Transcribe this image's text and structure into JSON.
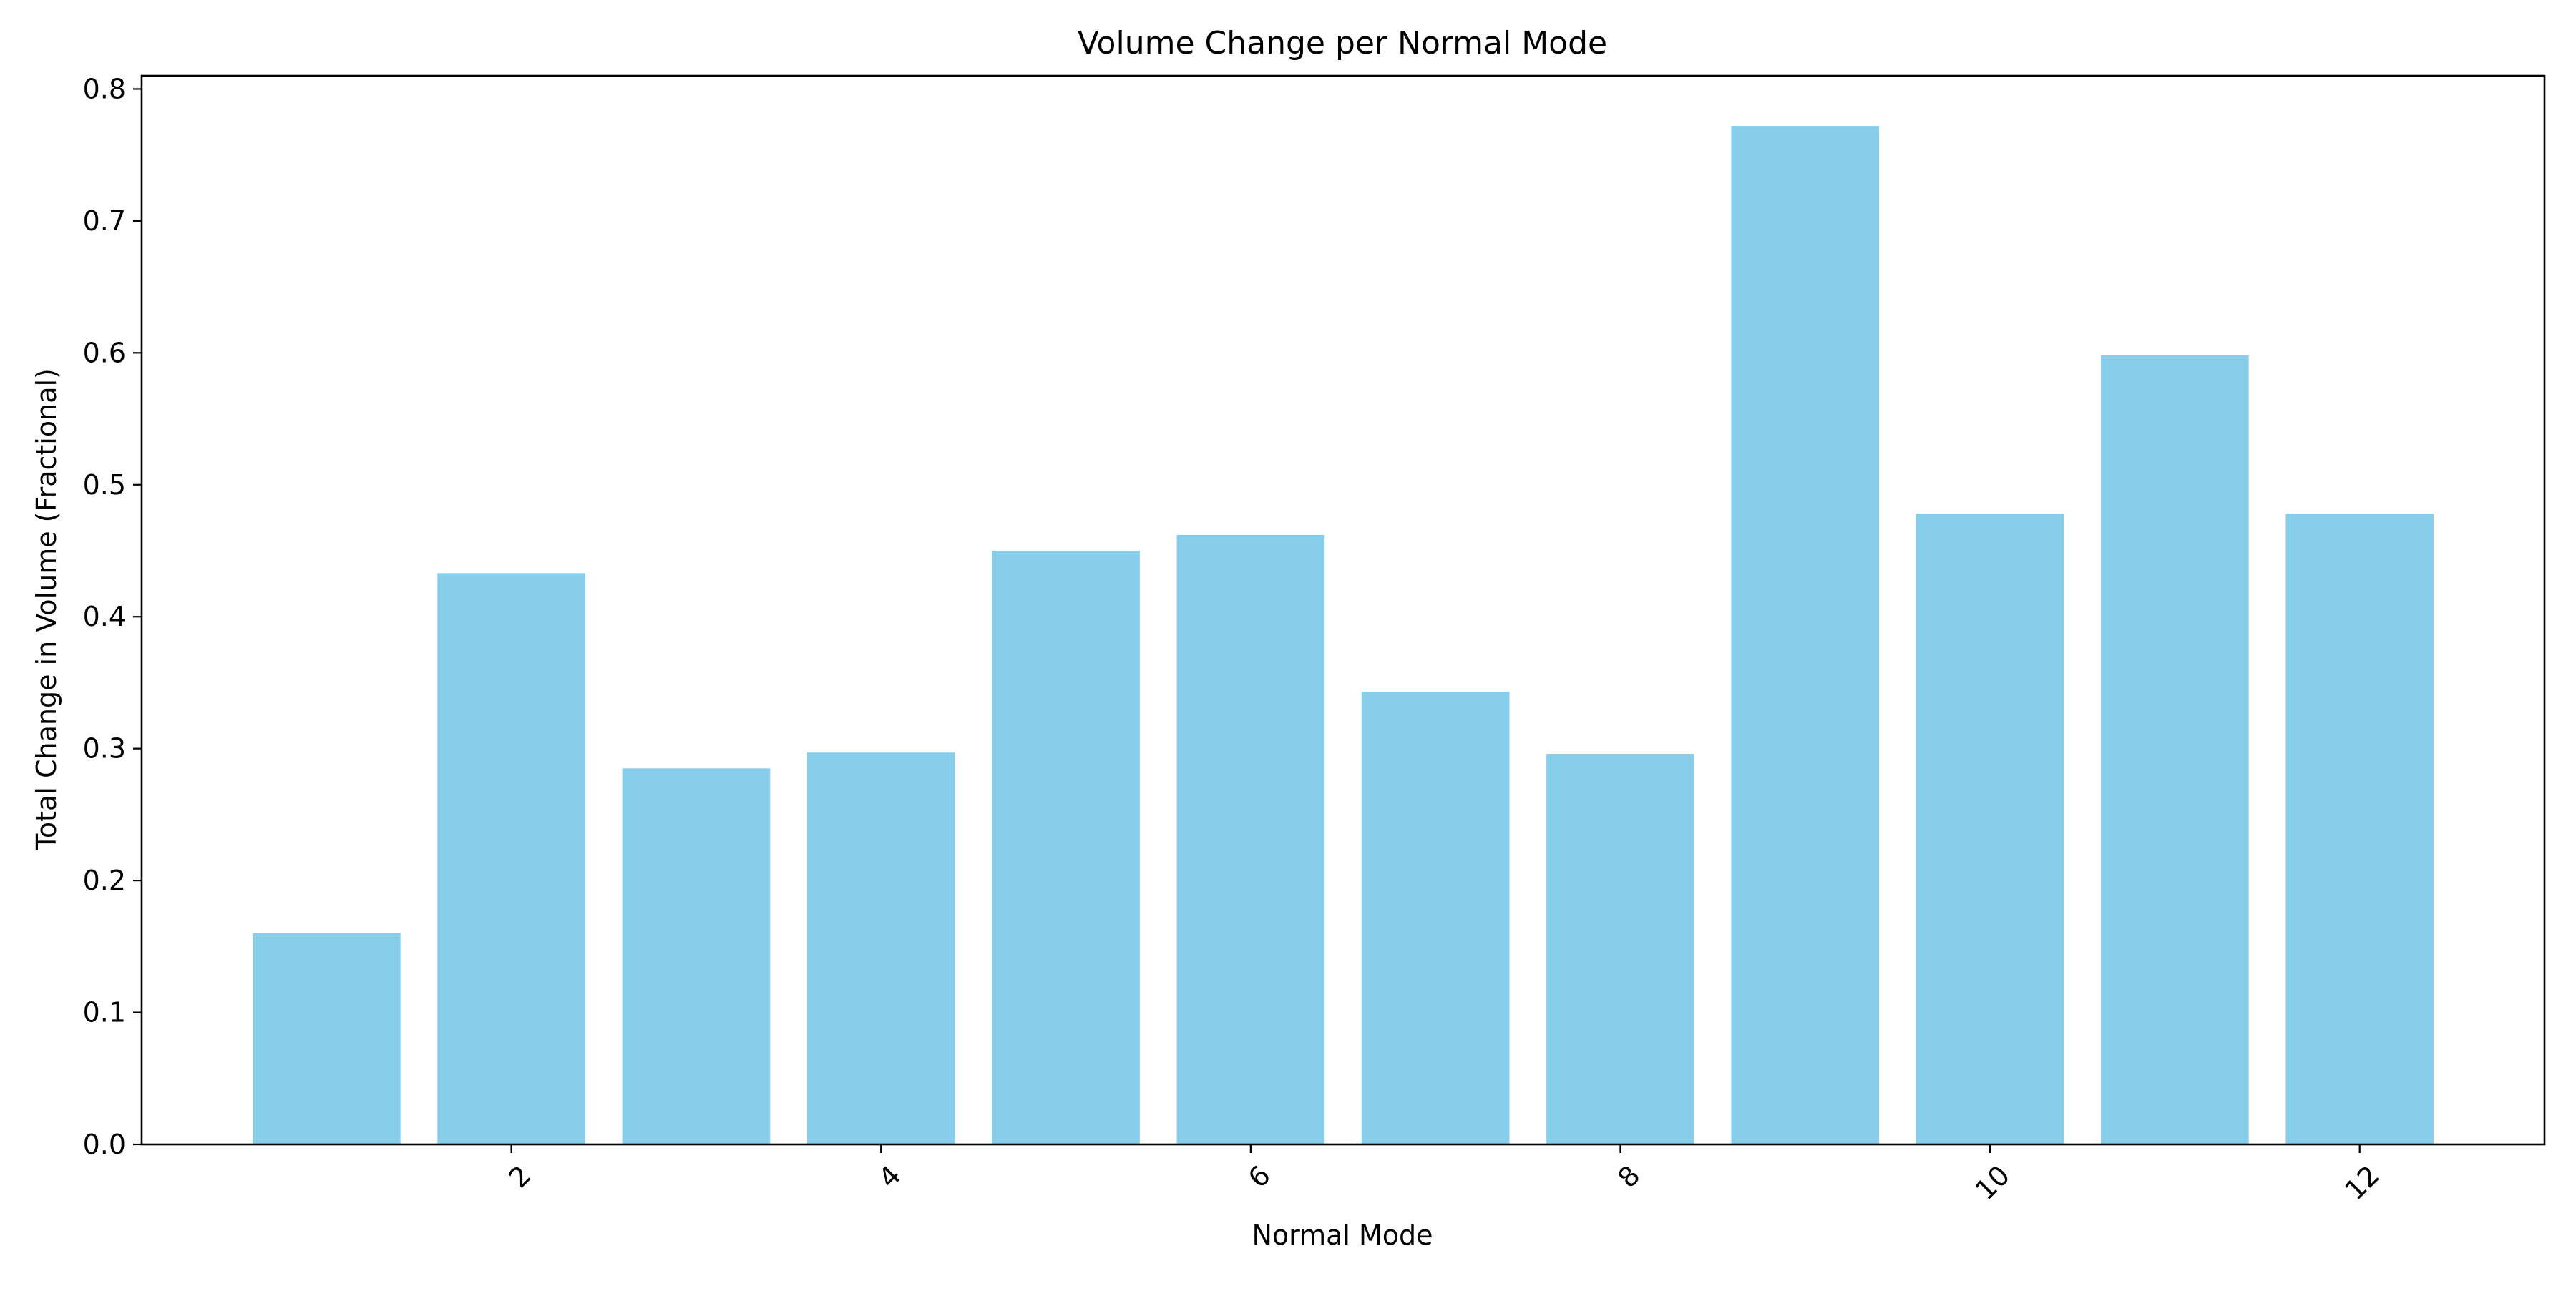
{
  "colors": {
    "bar": "#87CEEB",
    "axis": "#000000",
    "background": "#ffffff"
  },
  "chart_data": {
    "type": "bar",
    "title": "Volume Change per Normal Mode",
    "xlabel": "Normal Mode",
    "ylabel": "Total Change in Volume (Fractional)",
    "x": [
      1,
      2,
      3,
      4,
      5,
      6,
      7,
      8,
      9,
      10,
      11,
      12
    ],
    "values": [
      0.16,
      0.433,
      0.285,
      0.297,
      0.45,
      0.462,
      0.343,
      0.296,
      0.772,
      0.478,
      0.598,
      0.478
    ],
    "xlim": [
      0.0,
      13.0
    ],
    "ylim": [
      0.0,
      0.81
    ],
    "xticks": [
      2,
      4,
      6,
      8,
      10,
      12
    ],
    "xtick_labels": [
      "2",
      "4",
      "6",
      "8",
      "10",
      "12"
    ],
    "yticks": [
      0.0,
      0.1,
      0.2,
      0.3,
      0.4,
      0.5,
      0.6,
      0.7,
      0.8
    ],
    "ytick_labels": [
      "0.0",
      "0.1",
      "0.2",
      "0.3",
      "0.4",
      "0.5",
      "0.6",
      "0.7",
      "0.8"
    ],
    "grid": false,
    "legend": "none",
    "xtick_rotation": "45 degrees"
  }
}
